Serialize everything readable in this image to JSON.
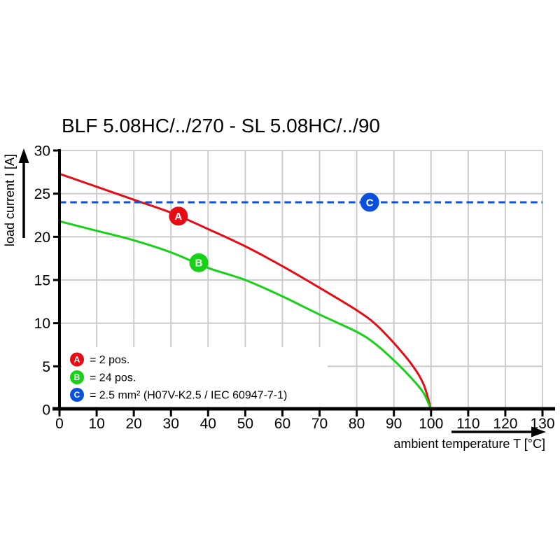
{
  "chart_data": {
    "type": "line",
    "title": "BLF 5.08HC/../270 - SL 5.08HC/../90",
    "xlabel": "ambient temperature T [°C]",
    "ylabel": "load current I [A]",
    "xlim": [
      0,
      130
    ],
    "ylim": [
      0,
      30
    ],
    "x_ticks": [
      0,
      10,
      20,
      30,
      40,
      50,
      60,
      70,
      80,
      90,
      100,
      110,
      120,
      130
    ],
    "y_ticks": [
      0,
      5,
      10,
      15,
      20,
      25,
      30
    ],
    "grid": true,
    "grid_color": "#c8c8c8",
    "axis_color": "#000000",
    "series": [
      {
        "name": "A",
        "label": "2 pos.",
        "color": "#e50c16",
        "style": "solid",
        "points": [
          [
            0,
            27.3
          ],
          [
            10,
            25.8
          ],
          [
            20,
            24.3
          ],
          [
            30,
            22.8
          ],
          [
            40,
            20.9
          ],
          [
            50,
            18.9
          ],
          [
            60,
            16.6
          ],
          [
            70,
            14.1
          ],
          [
            80,
            11.5
          ],
          [
            85,
            9.9
          ],
          [
            90,
            7.7
          ],
          [
            95,
            5.1
          ],
          [
            98,
            2.9
          ],
          [
            100,
            0
          ]
        ]
      },
      {
        "name": "B",
        "label": "24 pos.",
        "color": "#17d117",
        "style": "solid",
        "points": [
          [
            0,
            21.8
          ],
          [
            10,
            20.7
          ],
          [
            20,
            19.6
          ],
          [
            30,
            18.2
          ],
          [
            40,
            16.4
          ],
          [
            50,
            15.0
          ],
          [
            60,
            13.1
          ],
          [
            70,
            11.0
          ],
          [
            80,
            9.0
          ],
          [
            85,
            7.6
          ],
          [
            90,
            5.7
          ],
          [
            95,
            3.5
          ],
          [
            98,
            1.9
          ],
          [
            100,
            0
          ]
        ]
      },
      {
        "name": "C",
        "label": "2.5 mm² (H07V-K2.5 / IEC 60947-7-1)",
        "color": "#0a50dc",
        "style": "dashed",
        "points": [
          [
            0,
            24
          ],
          [
            130,
            24
          ]
        ]
      }
    ],
    "markers": [
      {
        "label": "A",
        "t": 32,
        "i": 22.4,
        "color": "#e50c16"
      },
      {
        "label": "B",
        "t": 37.5,
        "i": 17.0,
        "color": "#17d117"
      },
      {
        "label": "C",
        "t": 83.5,
        "i": 24.0,
        "color": "#0a50dc"
      }
    ],
    "legend": {
      "position": "bottom-left-inside",
      "items": [
        {
          "marker": "A",
          "marker_color": "#e50c16",
          "text": "= 2 pos."
        },
        {
          "marker": "B",
          "marker_color": "#17d117",
          "text": "= 24 pos."
        },
        {
          "marker": "C",
          "marker_color": "#0a50dc",
          "text": "= 2.5 mm² (H07V-K2.5 / IEC 60947-7-1)"
        }
      ]
    }
  }
}
